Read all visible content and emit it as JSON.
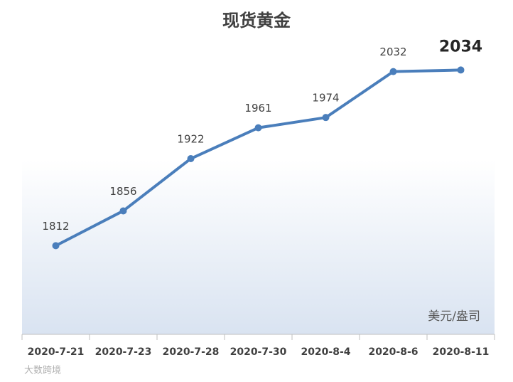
{
  "chart_data": {
    "type": "line",
    "title": "现货黄金",
    "categories": [
      "2020-7-21",
      "2020-7-23",
      "2020-7-28",
      "2020-7-30",
      "2020-8-4",
      "2020-8-6",
      "2020-8-11"
    ],
    "series": [
      {
        "name": "现货黄金",
        "color": "#4a7ebb",
        "values": [
          1812,
          1856,
          1922,
          1961,
          1974,
          2032,
          2034
        ]
      }
    ],
    "ylim": [
      1700,
      2100
    ],
    "unit_label": "美元/盎司",
    "watermark": "大数跨境"
  }
}
